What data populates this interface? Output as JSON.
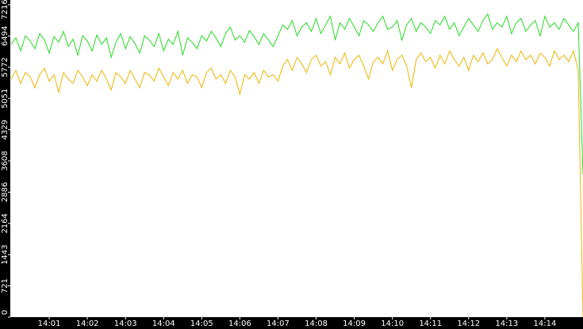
{
  "chart_data": {
    "type": "line",
    "xlim": [
      0,
      120
    ],
    "xticks": [
      {
        "value": 8,
        "label": "14:01"
      },
      {
        "value": 16,
        "label": "14:02"
      },
      {
        "value": 24,
        "label": "14:03"
      },
      {
        "value": 32,
        "label": "14:04"
      },
      {
        "value": 40,
        "label": "14:05"
      },
      {
        "value": 48,
        "label": "14:06"
      },
      {
        "value": 56,
        "label": "14:07"
      },
      {
        "value": 64,
        "label": "14:08"
      },
      {
        "value": 72,
        "label": "14:09"
      },
      {
        "value": 80,
        "label": "14:10"
      },
      {
        "value": 88,
        "label": "14:11"
      },
      {
        "value": 96,
        "label": "14:12"
      },
      {
        "value": 104,
        "label": "14:13"
      },
      {
        "value": 112,
        "label": "14:14"
      }
    ],
    "ylim": [
      0,
      7216
    ],
    "yticks": [
      0,
      721,
      1443,
      2164,
      2886,
      3608,
      4329,
      5051,
      5772,
      6494,
      7216
    ],
    "series": [
      {
        "color": "#f0b400",
        "values": [
          5500,
          5700,
          5400,
          5650,
          5550,
          5300,
          5600,
          5750,
          5450,
          5600,
          5200,
          5650,
          5500,
          5400,
          5700,
          5550,
          5350,
          5600,
          5450,
          5700,
          5500,
          5250,
          5650,
          5550,
          5400,
          5700,
          5500,
          5300,
          5650,
          5600,
          5450,
          5750,
          5550,
          5350,
          5650,
          5500,
          5700,
          5400,
          5600,
          5550,
          5300,
          5650,
          5750,
          5500,
          5600,
          5400,
          5700,
          5550,
          5150,
          5600,
          5500,
          5650,
          5400,
          5700,
          5550,
          5600,
          5450,
          5800,
          5950,
          5700,
          6000,
          5850,
          5650,
          5950,
          6050,
          5800,
          5900,
          5600,
          6000,
          5850,
          6100,
          5750,
          5950,
          6050,
          5800,
          5500,
          5900,
          6000,
          5850,
          6150,
          5700,
          5950,
          6050,
          5800,
          5300,
          5950,
          6100,
          5900,
          6000,
          5750,
          6050,
          5850,
          6150,
          5950,
          5800,
          6000,
          5700,
          6050,
          5900,
          6100,
          5850,
          5950,
          6200,
          6000,
          5800,
          6050,
          5900,
          6150,
          5950,
          6050,
          5850,
          6100,
          6000,
          5800,
          6150,
          5950,
          6050,
          5900,
          6150,
          5700,
          0
        ]
      },
      {
        "color": "#22dd22",
        "values": [
          6300,
          6450,
          6150,
          6500,
          6380,
          6200,
          6550,
          6400,
          6100,
          6480,
          6350,
          6600,
          6250,
          6420,
          6050,
          6500,
          6380,
          6150,
          6520,
          6300,
          6450,
          6000,
          6350,
          6550,
          6200,
          6480,
          6320,
          6100,
          6500,
          6400,
          6250,
          6550,
          6150,
          6420,
          6300,
          6600,
          6050,
          6450,
          6350,
          6200,
          6500,
          6380,
          6600,
          6450,
          6250,
          6550,
          6700,
          6400,
          6500,
          6350,
          6620,
          6480,
          6300,
          6550,
          6400,
          6250,
          6500,
          6750,
          6650,
          6850,
          6500,
          6700,
          6800,
          6600,
          6900,
          6550,
          6750,
          6950,
          6400,
          6800,
          6650,
          6900,
          6700,
          6500,
          6850,
          6750,
          6600,
          6800,
          6950,
          6650,
          6700,
          6850,
          6400,
          6750,
          6900,
          6600,
          6800,
          6700,
          6550,
          6850,
          6750,
          6950,
          6650,
          6800,
          6500,
          6700,
          6900,
          6750,
          6600,
          6850,
          7000,
          6650,
          6800,
          6700,
          6950,
          6550,
          6800,
          6900,
          6600,
          6750,
          6850,
          6500,
          6950,
          6700,
          6800,
          6650,
          6900,
          6750,
          6600,
          6800,
          3300
        ]
      }
    ]
  }
}
